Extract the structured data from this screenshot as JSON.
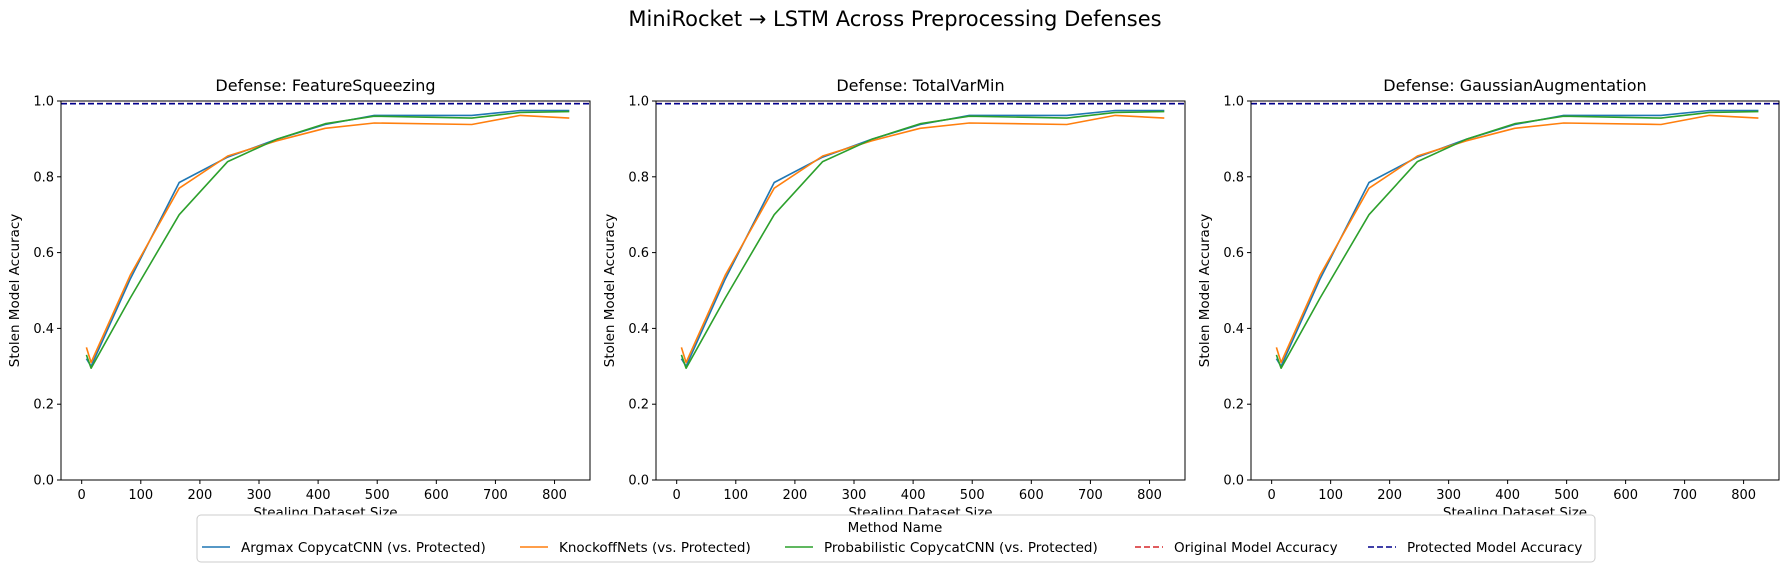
{
  "figure": {
    "title": "MiniRocket → LSTM Across Preprocessing Defenses"
  },
  "legend": {
    "title": "Method Name",
    "placement": "lower-center",
    "entries": [
      {
        "label": "Argmax CopycatCNN (vs. Protected)",
        "color": "#1f77b4",
        "style": "solid"
      },
      {
        "label": "KnockoffNets (vs. Protected)",
        "color": "#ff7f0e",
        "style": "solid"
      },
      {
        "label": "Probabilistic CopycatCNN (vs. Protected)",
        "color": "#2ca02c",
        "style": "solid"
      },
      {
        "label": "Original Model Accuracy",
        "color": "#d62728",
        "style": "dashed"
      },
      {
        "label": "Protected Model Accuracy",
        "color": "#00008b",
        "style": "dashed"
      }
    ]
  },
  "chart_data": [
    {
      "type": "line",
      "title": "Defense: FeatureSqueezing",
      "xlabel": "Stealing Dataset Size",
      "ylabel": "Stolen Model Accuracy",
      "xlim": [
        -35,
        860
      ],
      "ylim": [
        0,
        1.0
      ],
      "xticks": [
        0,
        100,
        200,
        300,
        400,
        500,
        600,
        700,
        800
      ],
      "yticks": [
        0.0,
        0.2,
        0.4,
        0.6,
        0.8,
        1.0
      ],
      "grid": false,
      "series": [
        {
          "name": "Argmax CopycatCNN (vs. Protected)",
          "color": "#1f77b4",
          "x": [
            8,
            16,
            82,
            165,
            247,
            330,
            412,
            495,
            660,
            742,
            825
          ],
          "y": [
            0.32,
            0.3,
            0.53,
            0.785,
            0.852,
            0.899,
            0.938,
            0.962,
            0.962,
            0.975,
            0.975
          ]
        },
        {
          "name": "KnockoffNets (vs. Protected)",
          "color": "#ff7f0e",
          "x": [
            8,
            16,
            82,
            165,
            247,
            330,
            412,
            495,
            660,
            742,
            825
          ],
          "y": [
            0.35,
            0.31,
            0.54,
            0.77,
            0.855,
            0.895,
            0.928,
            0.942,
            0.938,
            0.962,
            0.955
          ]
        },
        {
          "name": "Probabilistic CopycatCNN (vs. Protected)",
          "color": "#2ca02c",
          "x": [
            8,
            16,
            82,
            165,
            247,
            330,
            412,
            495,
            660,
            742,
            825
          ],
          "y": [
            0.33,
            0.295,
            0.48,
            0.7,
            0.84,
            0.899,
            0.94,
            0.96,
            0.955,
            0.97,
            0.972
          ]
        },
        {
          "name": "Original Model Accuracy",
          "color": "#d62728",
          "style": "dashed",
          "hline": 0.993
        },
        {
          "name": "Protected Model Accuracy",
          "color": "#00008b",
          "style": "dashed",
          "hline": 0.993
        }
      ]
    },
    {
      "type": "line",
      "title": "Defense: TotalVarMin",
      "xlabel": "Stealing Dataset Size",
      "ylabel": "Stolen Model Accuracy",
      "xlim": [
        -35,
        860
      ],
      "ylim": [
        0,
        1.0
      ],
      "xticks": [
        0,
        100,
        200,
        300,
        400,
        500,
        600,
        700,
        800
      ],
      "yticks": [
        0.0,
        0.2,
        0.4,
        0.6,
        0.8,
        1.0
      ],
      "grid": false,
      "series": [
        {
          "name": "Argmax CopycatCNN (vs. Protected)",
          "color": "#1f77b4",
          "x": [
            8,
            16,
            82,
            165,
            247,
            330,
            412,
            495,
            660,
            742,
            825
          ],
          "y": [
            0.32,
            0.3,
            0.53,
            0.785,
            0.852,
            0.899,
            0.938,
            0.962,
            0.962,
            0.975,
            0.975
          ]
        },
        {
          "name": "KnockoffNets (vs. Protected)",
          "color": "#ff7f0e",
          "x": [
            8,
            16,
            82,
            165,
            247,
            330,
            412,
            495,
            660,
            742,
            825
          ],
          "y": [
            0.35,
            0.31,
            0.54,
            0.77,
            0.855,
            0.895,
            0.928,
            0.942,
            0.938,
            0.962,
            0.955
          ]
        },
        {
          "name": "Probabilistic CopycatCNN (vs. Protected)",
          "color": "#2ca02c",
          "x": [
            8,
            16,
            82,
            165,
            247,
            330,
            412,
            495,
            660,
            742,
            825
          ],
          "y": [
            0.33,
            0.295,
            0.48,
            0.7,
            0.84,
            0.899,
            0.94,
            0.96,
            0.955,
            0.97,
            0.972
          ]
        },
        {
          "name": "Original Model Accuracy",
          "color": "#d62728",
          "style": "dashed",
          "hline": 0.993
        },
        {
          "name": "Protected Model Accuracy",
          "color": "#00008b",
          "style": "dashed",
          "hline": 0.993
        }
      ]
    },
    {
      "type": "line",
      "title": "Defense: GaussianAugmentation",
      "xlabel": "Stealing Dataset Size",
      "ylabel": "Stolen Model Accuracy",
      "xlim": [
        -35,
        860
      ],
      "ylim": [
        0,
        1.0
      ],
      "xticks": [
        0,
        100,
        200,
        300,
        400,
        500,
        600,
        700,
        800
      ],
      "yticks": [
        0.0,
        0.2,
        0.4,
        0.6,
        0.8,
        1.0
      ],
      "grid": false,
      "series": [
        {
          "name": "Argmax CopycatCNN (vs. Protected)",
          "color": "#1f77b4",
          "x": [
            8,
            16,
            82,
            165,
            247,
            330,
            412,
            495,
            660,
            742,
            825
          ],
          "y": [
            0.32,
            0.3,
            0.53,
            0.785,
            0.852,
            0.899,
            0.938,
            0.962,
            0.962,
            0.975,
            0.975
          ]
        },
        {
          "name": "KnockoffNets (vs. Protected)",
          "color": "#ff7f0e",
          "x": [
            8,
            16,
            82,
            165,
            247,
            330,
            412,
            495,
            660,
            742,
            825
          ],
          "y": [
            0.35,
            0.31,
            0.54,
            0.77,
            0.855,
            0.895,
            0.928,
            0.942,
            0.938,
            0.962,
            0.955
          ]
        },
        {
          "name": "Probabilistic CopycatCNN (vs. Protected)",
          "color": "#2ca02c",
          "x": [
            8,
            16,
            82,
            165,
            247,
            330,
            412,
            495,
            660,
            742,
            825
          ],
          "y": [
            0.33,
            0.295,
            0.48,
            0.7,
            0.84,
            0.899,
            0.94,
            0.96,
            0.955,
            0.97,
            0.972
          ]
        },
        {
          "name": "Original Model Accuracy",
          "color": "#d62728",
          "style": "dashed",
          "hline": 0.993
        },
        {
          "name": "Protected Model Accuracy",
          "color": "#00008b",
          "style": "dashed",
          "hline": 0.993
        }
      ]
    }
  ]
}
